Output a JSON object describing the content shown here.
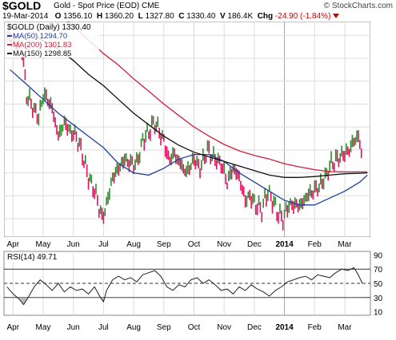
{
  "header": {
    "symbol": "$GOLD",
    "subtitle": "Gold - Spot Price (EOD)  CME",
    "brand": "© StockCharts.com",
    "date": "19-Mar-2014",
    "open_label": "O",
    "open": "1356.10",
    "high_label": "H",
    "high": "1360.20",
    "low_label": "L",
    "low": "1327.80",
    "close_label": "C",
    "close": "1330.40",
    "volume_label": "V",
    "volume": "186.4K",
    "chg_label": "Chg",
    "chg": "-24.90 (-1.84%)"
  },
  "colors": {
    "price_up": "#2e8b2e",
    "price_down": "#e0115f",
    "ma50": "#1f3f9a",
    "ma200": "#d21c3a",
    "ma150": "#111111",
    "rsi_line": "#222222",
    "rsi_fill": "#bbbbbb",
    "grid": "#dcdcdc",
    "vline_2014": "#7fbf7f"
  },
  "chart_data": [
    {
      "type": "line",
      "title": "$GOLD (Daily) 1330.40",
      "legend": [
        {
          "key": "ma50",
          "name": "MA(50) 1294.70"
        },
        {
          "key": "ma200",
          "name": "MA(200) 1301.83"
        },
        {
          "key": "ma150",
          "name": "MA(150) 1298.85"
        }
      ],
      "legend_position": "top-left",
      "ylim": [
        1160,
        1630
      ],
      "yticks": [
        "1600",
        "1550",
        "1500",
        "1450",
        "1400",
        "1350",
        "1300",
        "1250",
        "1200"
      ],
      "xticks": [
        "Apr",
        "May",
        "Jun",
        "Jul",
        "Aug",
        "Sep",
        "Oct",
        "Nov",
        "Dec",
        "2014",
        "Feb",
        "Mar"
      ],
      "x_months": [
        0,
        1,
        2,
        3,
        4,
        5,
        6,
        7,
        8,
        9,
        10,
        11
      ],
      "xlim": [
        -0.3,
        11.85
      ],
      "grid": true,
      "series": [
        {
          "key": "price",
          "x": [
            -0.2,
            0.3,
            0.45,
            0.6,
            0.85,
            1.0,
            1.15,
            1.3,
            1.5,
            1.7,
            1.9,
            2.1,
            2.3,
            2.5,
            2.65,
            2.8,
            2.95,
            3.1,
            3.3,
            3.5,
            3.7,
            3.9,
            4.1,
            4.3,
            4.5,
            4.7,
            4.85,
            5.0,
            5.15,
            5.35,
            5.55,
            5.75,
            6.0,
            6.2,
            6.45,
            6.7,
            6.9,
            7.1,
            7.3,
            7.5,
            7.7,
            7.85,
            8.05,
            8.25,
            8.45,
            8.6,
            8.8,
            8.95,
            9.15,
            9.35,
            9.55,
            9.75,
            9.95,
            10.15,
            10.35,
            10.55,
            10.75,
            10.95,
            11.15,
            11.3,
            11.45,
            11.58
          ],
          "y": [
            1600,
            1570,
            1470,
            1450,
            1420,
            1470,
            1460,
            1440,
            1380,
            1410,
            1390,
            1380,
            1340,
            1290,
            1270,
            1240,
            1200,
            1230,
            1290,
            1310,
            1330,
            1320,
            1320,
            1370,
            1390,
            1410,
            1390,
            1370,
            1330,
            1340,
            1320,
            1300,
            1330,
            1310,
            1350,
            1330,
            1320,
            1280,
            1310,
            1290,
            1240,
            1250,
            1230,
            1220,
            1260,
            1240,
            1210,
            1200,
            1230,
            1230,
            1230,
            1250,
            1260,
            1270,
            1290,
            1320,
            1330,
            1340,
            1350,
            1370,
            1380,
            1330
          ]
        },
        {
          "key": "ma50",
          "x": [
            -0.1,
            0.5,
            1.0,
            1.5,
            2.0,
            2.5,
            3.0,
            3.5,
            4.0,
            4.5,
            5.0,
            5.5,
            6.0,
            6.5,
            7.0,
            7.5,
            8.0,
            8.5,
            9.0,
            9.5,
            10.0,
            10.5,
            11.0,
            11.5,
            11.75
          ],
          "y": [
            1525,
            1490,
            1460,
            1430,
            1405,
            1380,
            1355,
            1320,
            1300,
            1295,
            1310,
            1330,
            1340,
            1340,
            1325,
            1300,
            1280,
            1260,
            1240,
            1230,
            1230,
            1245,
            1260,
            1280,
            1295
          ]
        },
        {
          "key": "ma150",
          "x": [
            0.8,
            1.5,
            2.0,
            2.5,
            3.0,
            3.5,
            4.0,
            4.5,
            5.0,
            5.5,
            6.0,
            6.5,
            7.0,
            7.5,
            8.0,
            8.5,
            9.0,
            9.5,
            10.0,
            10.5,
            11.0,
            11.5,
            11.75
          ],
          "y": [
            1595,
            1570,
            1545,
            1515,
            1490,
            1460,
            1430,
            1405,
            1380,
            1360,
            1345,
            1335,
            1325,
            1315,
            1305,
            1295,
            1290,
            1290,
            1292,
            1295,
            1298,
            1299,
            1300
          ]
        },
        {
          "key": "ma200",
          "x": [
            1.6,
            2.0,
            2.5,
            3.0,
            3.5,
            4.0,
            4.5,
            5.0,
            5.5,
            6.0,
            6.5,
            7.0,
            7.5,
            8.0,
            8.5,
            9.0,
            9.5,
            10.0,
            10.5,
            11.0,
            11.5,
            11.75
          ],
          "y": [
            1640,
            1620,
            1590,
            1560,
            1535,
            1505,
            1478,
            1450,
            1425,
            1400,
            1380,
            1362,
            1348,
            1338,
            1330,
            1320,
            1313,
            1307,
            1303,
            1302,
            1302,
            1302
          ]
        }
      ]
    },
    {
      "type": "line",
      "title": "RSI(14) 49.71",
      "legend_position": "top-left",
      "ylim": [
        5,
        95
      ],
      "yticks": [
        "90",
        "70",
        "50",
        "30",
        "10"
      ],
      "ref_lines": [
        70,
        50,
        30
      ],
      "xticks": [
        "Apr",
        "May",
        "Jun",
        "Jul",
        "Aug",
        "Sep",
        "Oct",
        "Nov",
        "Dec",
        "2014",
        "Feb",
        "Mar"
      ],
      "x_months": [
        0,
        1,
        2,
        3,
        4,
        5,
        6,
        7,
        8,
        9,
        10,
        11
      ],
      "xlim": [
        -0.3,
        11.85
      ],
      "grid": true,
      "series": [
        {
          "key": "rsi",
          "x": [
            -0.2,
            0.0,
            0.2,
            0.35,
            0.5,
            0.7,
            0.9,
            1.1,
            1.3,
            1.5,
            1.7,
            1.9,
            2.1,
            2.3,
            2.5,
            2.7,
            2.9,
            3.0,
            3.1,
            3.3,
            3.5,
            3.7,
            3.9,
            4.1,
            4.3,
            4.5,
            4.7,
            4.9,
            5.1,
            5.3,
            5.5,
            5.7,
            5.9,
            6.1,
            6.3,
            6.5,
            6.7,
            6.9,
            7.1,
            7.3,
            7.5,
            7.7,
            7.9,
            8.1,
            8.3,
            8.5,
            8.7,
            8.9,
            9.1,
            9.3,
            9.5,
            9.7,
            9.9,
            10.1,
            10.3,
            10.5,
            10.7,
            10.9,
            11.1,
            11.3,
            11.45,
            11.58
          ],
          "y": [
            45,
            35,
            28,
            20,
            30,
            45,
            55,
            48,
            40,
            50,
            38,
            45,
            40,
            42,
            35,
            45,
            30,
            24,
            40,
            55,
            60,
            55,
            58,
            52,
            62,
            65,
            68,
            60,
            45,
            40,
            48,
            45,
            55,
            58,
            50,
            55,
            48,
            40,
            42,
            35,
            45,
            40,
            48,
            42,
            38,
            32,
            40,
            45,
            52,
            55,
            58,
            60,
            55,
            62,
            60,
            58,
            65,
            70,
            68,
            72,
            62,
            50
          ]
        }
      ]
    }
  ]
}
